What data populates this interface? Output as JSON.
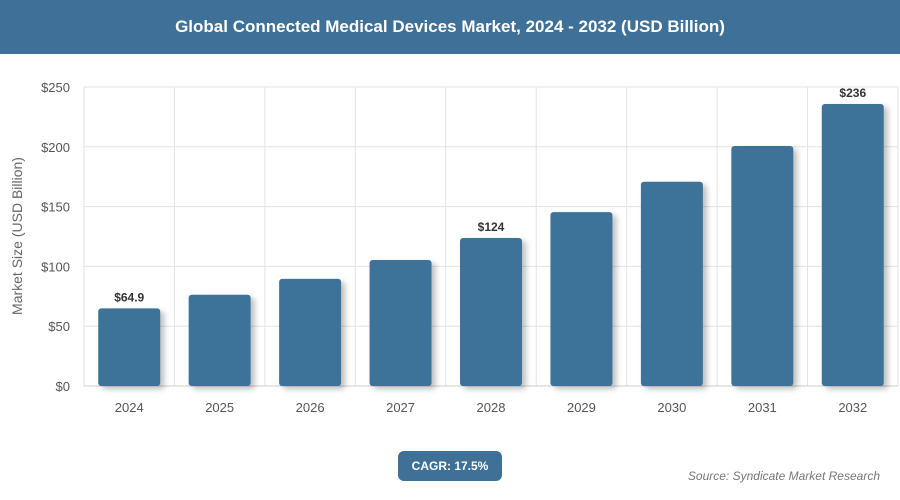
{
  "chart_data": {
    "type": "bar",
    "title": "Global Connected Medical Devices Market, 2024 - 2032 (USD Billion)",
    "xlabel": "",
    "ylabel": "Market Size (USD Billion)",
    "categories": [
      "2024",
      "2025",
      "2026",
      "2027",
      "2028",
      "2029",
      "2030",
      "2031",
      "2032"
    ],
    "values": [
      64.9,
      76.3,
      89.6,
      105.3,
      123.7,
      145.4,
      170.8,
      200.7,
      235.8
    ],
    "data_labels": {
      "0": "$64.9",
      "4": "$124",
      "8": "$236"
    },
    "ylim": [
      0,
      250
    ],
    "yticks": [
      0,
      50,
      100,
      150,
      200,
      250
    ],
    "ytick_labels": [
      "$0",
      "$50",
      "$100",
      "$150",
      "$200",
      "$250"
    ],
    "grid": true,
    "bar_color": "#3e7399",
    "header_color": "#3e7098"
  },
  "cagr": "CAGR: 17.5%",
  "source": "Source: Syndicate Market Research"
}
